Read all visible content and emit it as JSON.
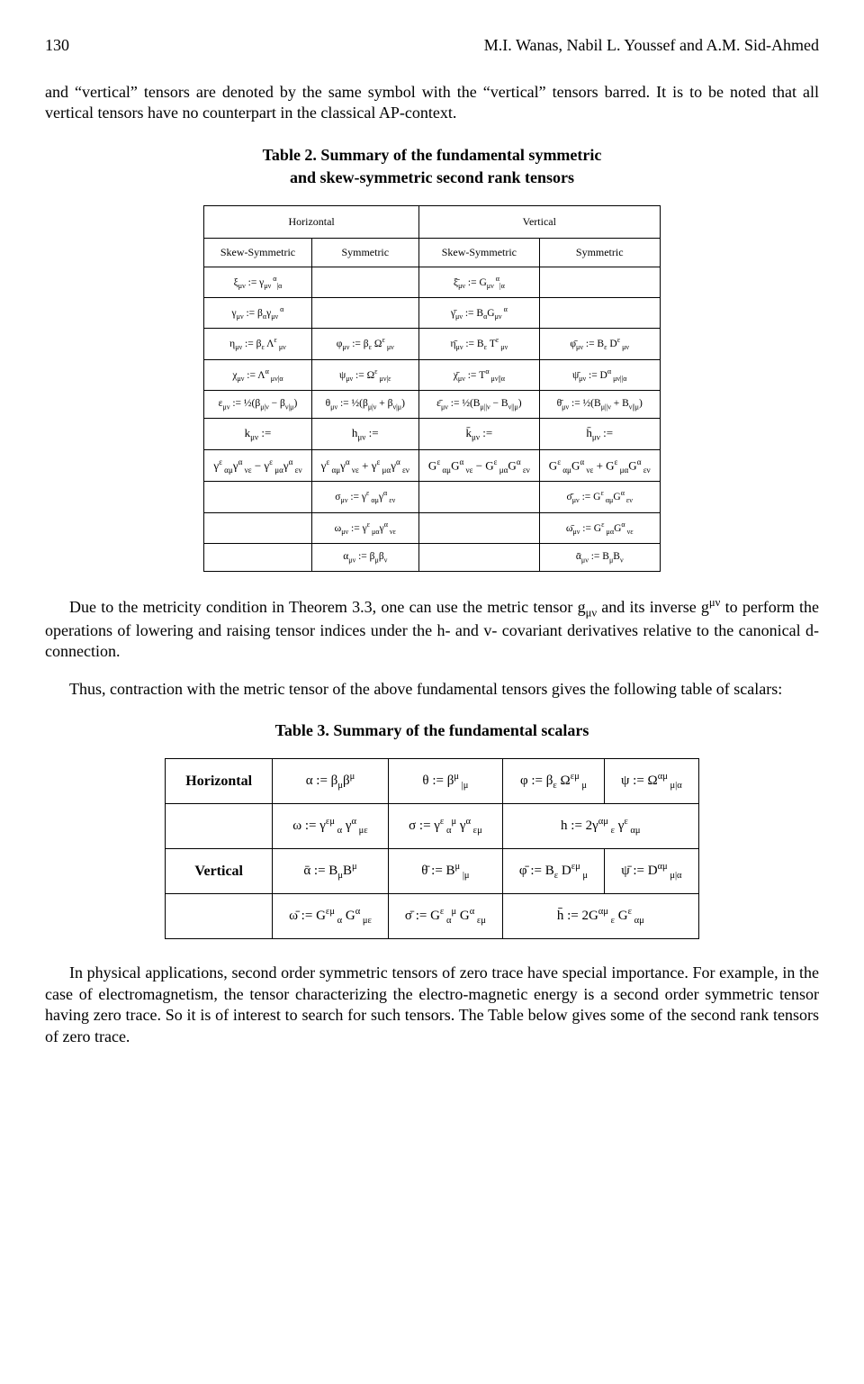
{
  "page_number": "130",
  "authors": "M.I. Wanas, Nabil L. Youssef and A.M. Sid-Ahmed",
  "para1": "and “vertical” tensors are denoted by the same symbol with the “vertical” tensors barred. It is to be noted that all vertical tensors have no counterpart in the classical AP-context.",
  "table2_caption_bold": "Table 2. Summary of the fundamental symmetric",
  "table2_caption_line2": "and skew-symmetric second rank tensors",
  "tensors_table": {
    "top_groups": [
      "Horizontal",
      "Vertical"
    ],
    "sub_headers": [
      "Skew-Symmetric",
      "Symmetric",
      "Skew-Symmetric",
      "Symmetric"
    ],
    "rows": [
      [
        "ξ_{μν} := γ_{μν}^{ α}_{|α}",
        "",
        "ξ̄_{μν} := G_{μν}^{ α}_{|α}",
        ""
      ],
      [
        "γ_{μν} := β_{α}γ_{μν}^{ α}",
        "",
        "γ̄_{μν} := B_{α}G_{μν}^{ α}",
        ""
      ],
      [
        "η_{μν} := β_{ε} Λ^{ε}_{ μν}",
        "φ_{μν} := β_{ε} Ω^{ε}_{ μν}",
        "η̄_{μν} := B_{ε} T^{ε}_{ μν}",
        "φ̄_{μν} := B_{ε} D^{ε}_{ μν}"
      ],
      [
        "χ_{μν} := Λ^{α}_{ μν|α}",
        "ψ_{μν} := Ω^{ε}_{ μν|ε}",
        "χ̄_{μν} := T^{α}_{ μν||α}",
        "ψ̄_{μν} := D^{α}_{ μν||α}"
      ],
      [
        "ε_{μν} := ½(β_{μ|ν} − β_{ν|μ})",
        "θ_{μν} := ½(β_{μ|ν} + β_{ν|μ})",
        "ε̄_{μν} := ½(B_{μ||ν} − B_{ν||μ})",
        "θ̄_{μν} := ½(B_{μ||ν} + B_{ν||μ})"
      ],
      [
        "k_{μν} :=",
        "h_{μν} :=",
        "k̄_{μν} :=",
        "h̄_{μν} :="
      ],
      [
        "γ^{ε}_{ αμ}γ^{α}_{ νε} − γ^{ε}_{ μα}γ^{α}_{ εν}",
        "γ^{ε}_{ αμ}γ^{α}_{ νε} + γ^{ε}_{ μα}γ^{α}_{ εν}",
        "G^{ε}_{ αμ}G^{α}_{ νε} − G^{ε}_{ μα}G^{α}_{ εν}",
        "G^{ε}_{ αμ}G^{α}_{ νε} + G^{ε}_{ μα}G^{α}_{ εν}"
      ],
      [
        "",
        "σ_{μν} := γ^{ε}_{ αμ}γ^{α}_{ εν}",
        "",
        "σ̄_{μν} := G^{ε}_{ αμ}G^{α}_{ εν}"
      ],
      [
        "",
        "ω_{μν} := γ^{ε}_{ μα}γ^{α}_{ νε}",
        "",
        "ω̄_{μν} := G^{ε}_{ μα}G^{α}_{ νε}"
      ],
      [
        "",
        "α_{μν} := β_{μ}β_{ν}",
        "",
        "ᾱ_{μν} := B_{μ}B_{ν}"
      ]
    ]
  },
  "para2": "Due to the metricity condition in Theorem 3.3, one can use the metric tensor g_{μν} and its inverse g^{μν} to perform the operations of lowering and raising tensor indices under the h- and v- covariant derivatives relative to the canonical d-connection.",
  "para3": "Thus, contraction with the metric tensor of the above fundamental tensors gives the following table of scalars:",
  "table3_caption_bold": "Table 3. Summary of the fundamental scalars",
  "scalars_table": {
    "row_headers": [
      "Horizontal",
      "",
      "Vertical",
      ""
    ],
    "rows": [
      [
        "α := β_{μ}β^{μ}",
        "θ := β^{μ}_{ |μ}",
        "φ := β_{ε} Ω^{εμ}_{ μ}",
        "ψ := Ω^{αμ}_{ μ|α}"
      ],
      [
        "ω := γ^{εμ}_{ α} γ^{α}_{ με}",
        "σ := γ^{ε}_{ α}^{μ} γ^{α}_{ εμ}",
        "h := 2γ^{αμ}_{ ε} γ^{ε}_{ αμ}",
        ""
      ],
      [
        "ᾱ := B_{μ}B^{μ}",
        "θ̄ := B^{μ}_{ |μ}",
        "φ̄ := B_{ε} D^{εμ}_{ μ}",
        "ψ̄ := D^{αμ}_{ μ|α}"
      ],
      [
        "ω̄ := G^{εμ}_{ α} G^{α}_{ με}",
        "σ̄ := G^{ε}_{ α}^{μ} G^{α}_{ εμ}",
        "h̄ := 2G^{αμ}_{ ε} G^{ε}_{ αμ}",
        ""
      ]
    ]
  },
  "para4": "In physical applications, second order symmetric tensors of zero trace have special importance. For example, in the case of electromagnetism, the tensor characterizing the electro-magnetic energy is a second order symmetric tensor having zero trace. So it is of interest to search for such tensors. The Table below gives some of the second rank tensors of zero trace."
}
